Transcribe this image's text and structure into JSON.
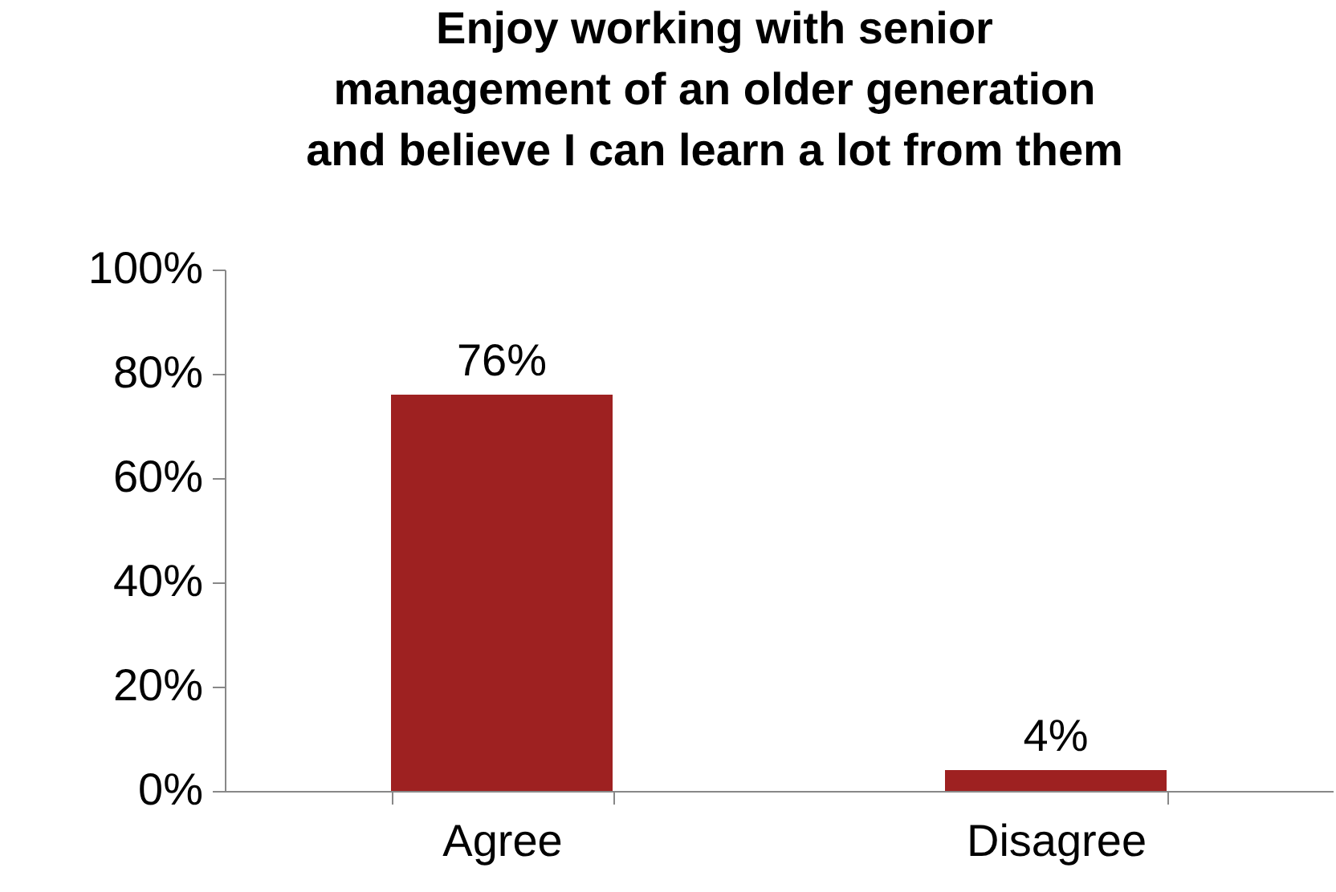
{
  "chart_data": {
    "type": "bar",
    "title": "Enjoy working with senior\nmanagement of an older generation\nand believe I can learn a lot from them",
    "categories": [
      "Agree",
      "Disagree"
    ],
    "values": [
      76,
      4
    ],
    "value_labels": [
      "76%",
      "4%"
    ],
    "color": "#9e2121",
    "ylim": [
      0,
      100
    ],
    "yticks": [
      {
        "value": 0,
        "label": "0%"
      },
      {
        "value": 20,
        "label": "20%"
      },
      {
        "value": 40,
        "label": "40%"
      },
      {
        "value": 60,
        "label": "60%"
      },
      {
        "value": 80,
        "label": "80%"
      },
      {
        "value": 100,
        "label": "100%"
      }
    ],
    "grid": false
  }
}
